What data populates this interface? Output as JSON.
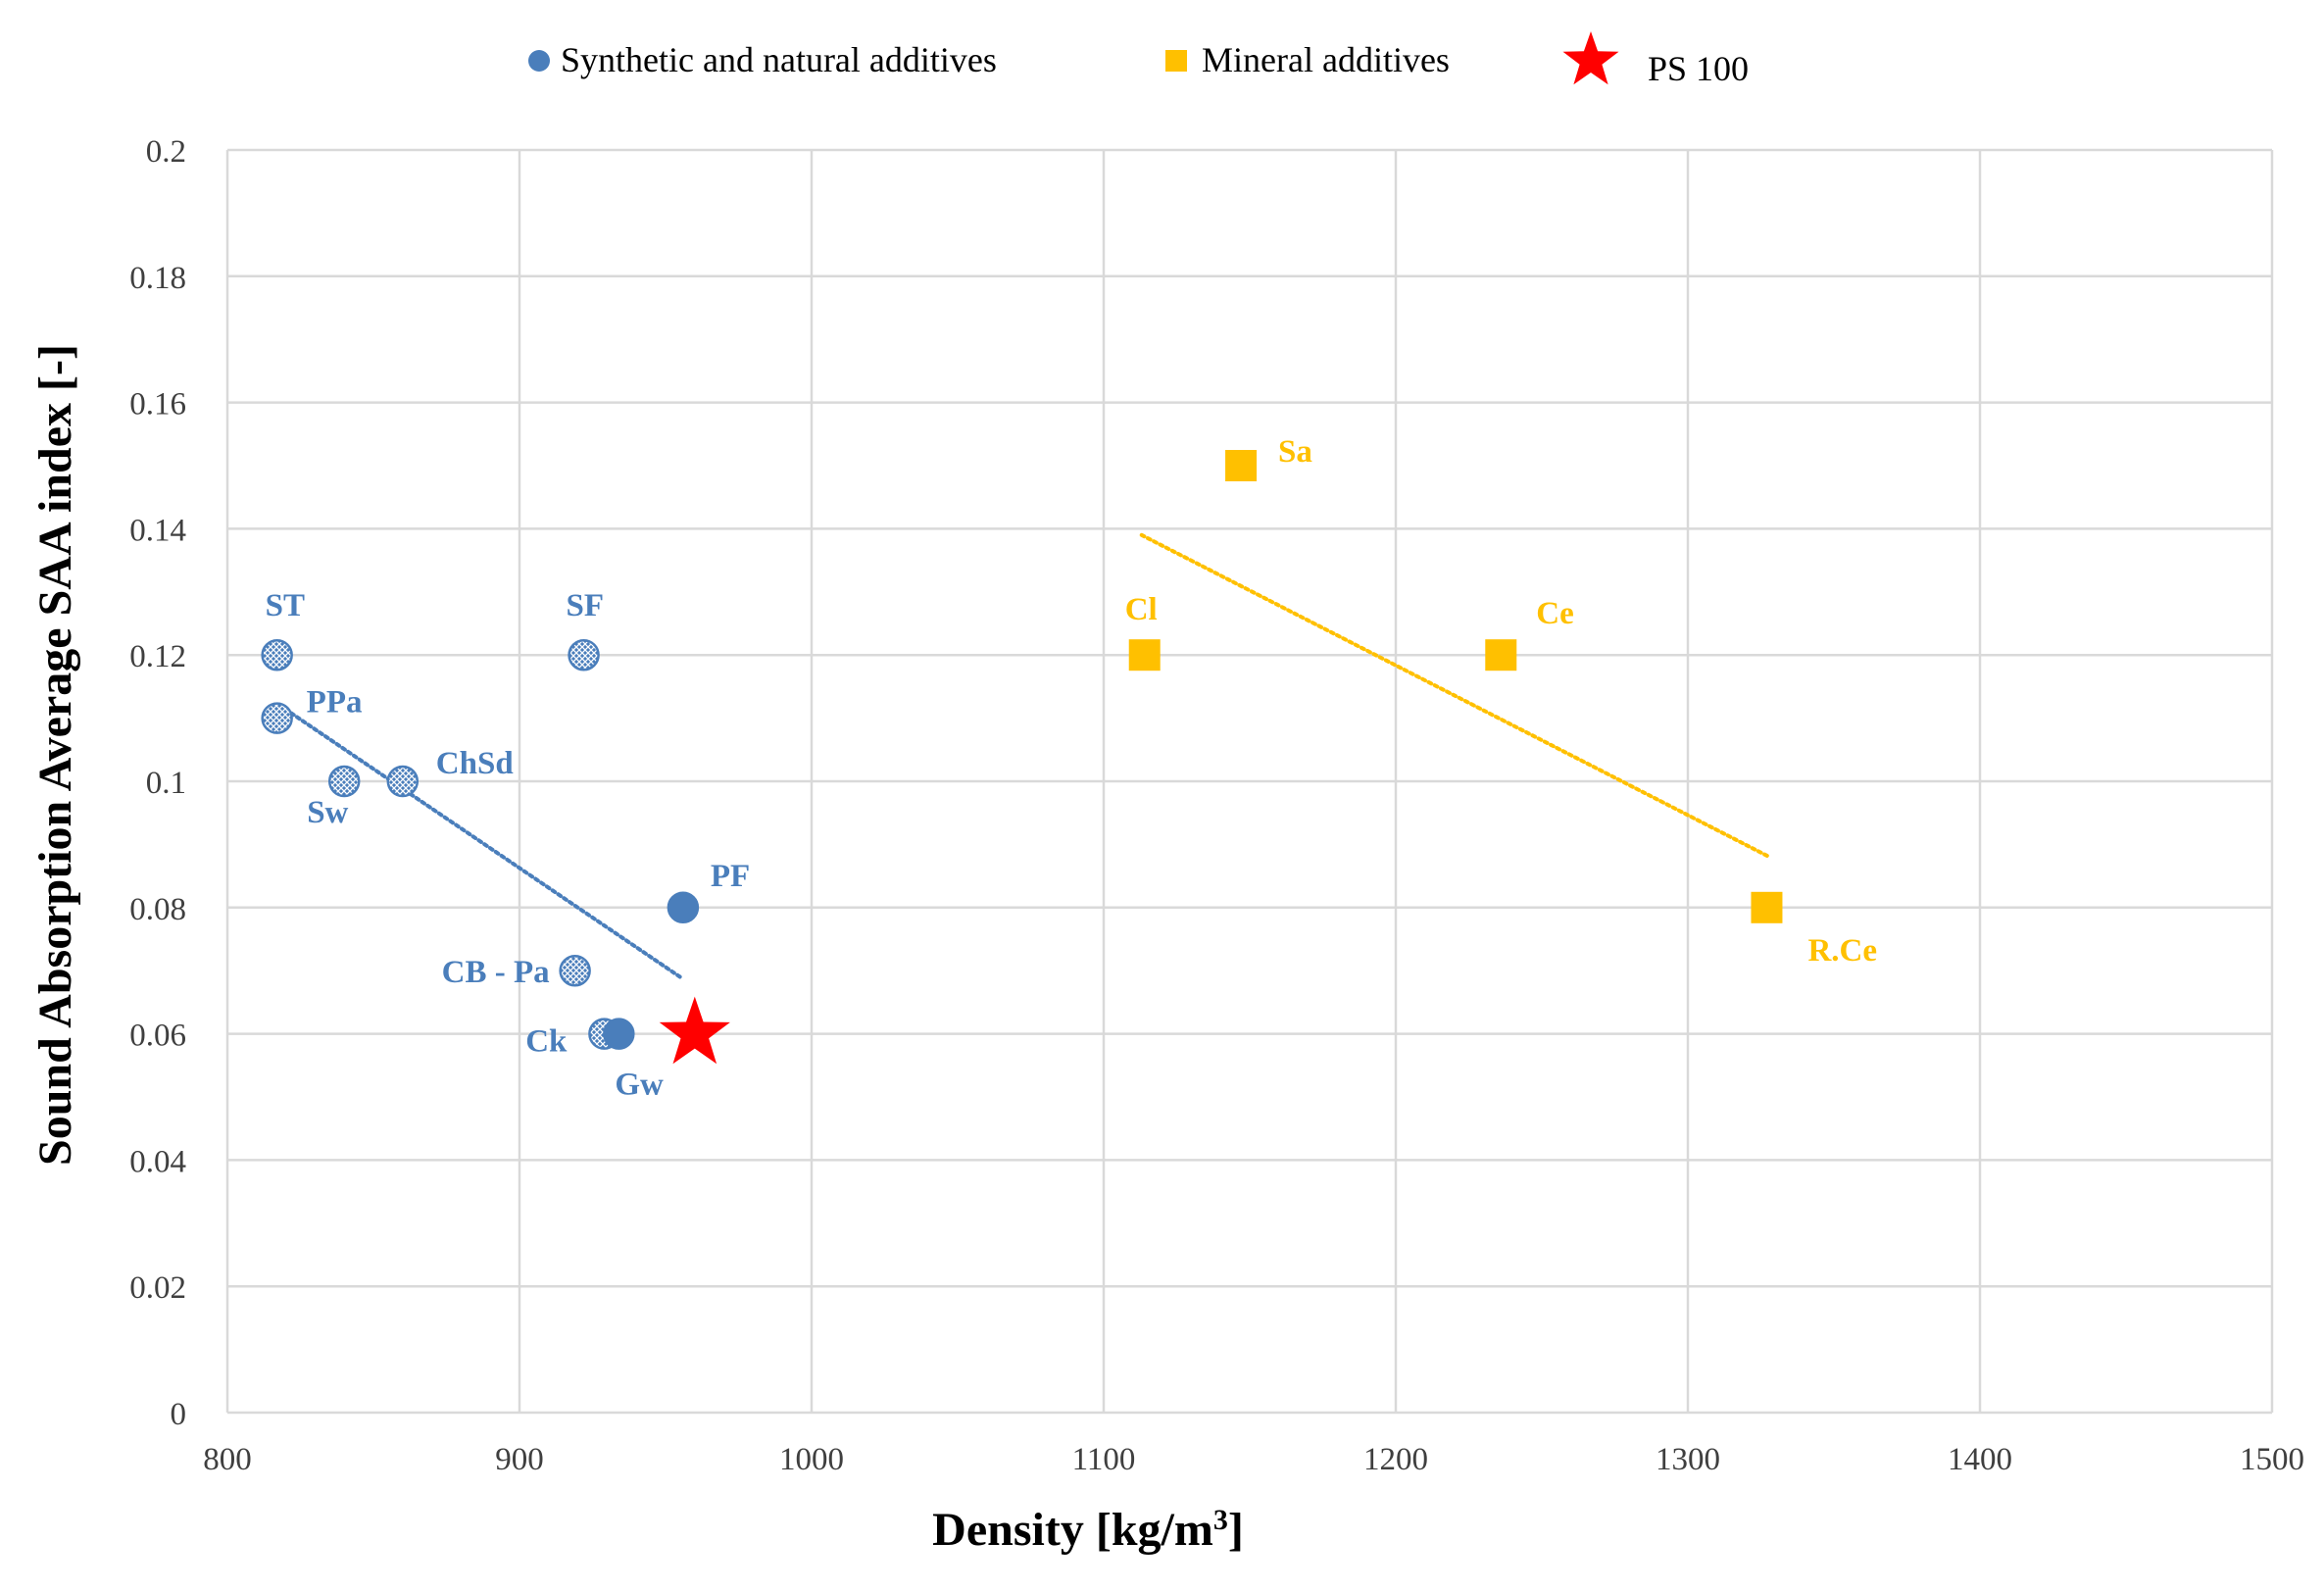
{
  "chart_data": {
    "type": "scatter",
    "title": "",
    "xlabel": "Density [kg/m",
    "xlabel_sup": "3",
    "xlabel_suffix": "]",
    "ylabel": "Sound Absorption Average SAA index [-]",
    "xlim": [
      800,
      1500
    ],
    "ylim": [
      0,
      0.2
    ],
    "x_ticks": [
      "800",
      "900",
      "1000",
      "1100",
      "1200",
      "1300",
      "1400",
      "1500"
    ],
    "y_ticks": [
      "0",
      "0.02",
      "0.04",
      "0.06",
      "0.08",
      "0.1",
      "0.12",
      "0.14",
      "0.16",
      "0.18",
      "0.2"
    ],
    "grid": true,
    "legend_position": "top",
    "legend": [
      {
        "label": "Synthetic and natural additives",
        "marker": "circle",
        "color": "#4a7ebb"
      },
      {
        "label": "Mineral additives",
        "marker": "square",
        "color": "#ffc000"
      },
      {
        "label": "PS 100",
        "marker": "star",
        "color": "#ff0000"
      }
    ],
    "series": [
      {
        "name": "Synthetic and natural additives",
        "color": "#4a7ebb",
        "points": [
          {
            "label": "ST",
            "x": 817,
            "y": 0.12,
            "pattern": true
          },
          {
            "label": "PPa",
            "x": 817,
            "y": 0.11,
            "pattern": true
          },
          {
            "label": "Sw",
            "x": 840,
            "y": 0.1,
            "pattern": true
          },
          {
            "label": "ChSd",
            "x": 860,
            "y": 0.1,
            "pattern": true
          },
          {
            "label": "SF",
            "x": 922,
            "y": 0.12,
            "pattern": true
          },
          {
            "label": "PF",
            "x": 956,
            "y": 0.08,
            "pattern": false
          },
          {
            "label": "CB - Pa",
            "x": 919,
            "y": 0.07,
            "pattern": true
          },
          {
            "label": "Ck",
            "x": 929,
            "y": 0.06,
            "pattern": true
          },
          {
            "label": "Gw",
            "x": 934,
            "y": 0.06,
            "pattern": false
          }
        ],
        "trendline": {
          "x": [
            818,
            955
          ],
          "y": [
            0.112,
            0.069
          ]
        }
      },
      {
        "name": "Mineral additives",
        "color": "#ffc000",
        "points": [
          {
            "label": "Sa",
            "x": 1147,
            "y": 0.15
          },
          {
            "label": "Cl",
            "x": 1114,
            "y": 0.12
          },
          {
            "label": "Ce",
            "x": 1236,
            "y": 0.12
          },
          {
            "label": "R.Ce",
            "x": 1327,
            "y": 0.08
          }
        ],
        "trendline": {
          "x": [
            1113,
            1328
          ],
          "y": [
            0.139,
            0.088
          ]
        }
      },
      {
        "name": "PS 100",
        "color": "#ff0000",
        "points": [
          {
            "label": "",
            "x": 960,
            "y": 0.06
          }
        ]
      }
    ]
  }
}
